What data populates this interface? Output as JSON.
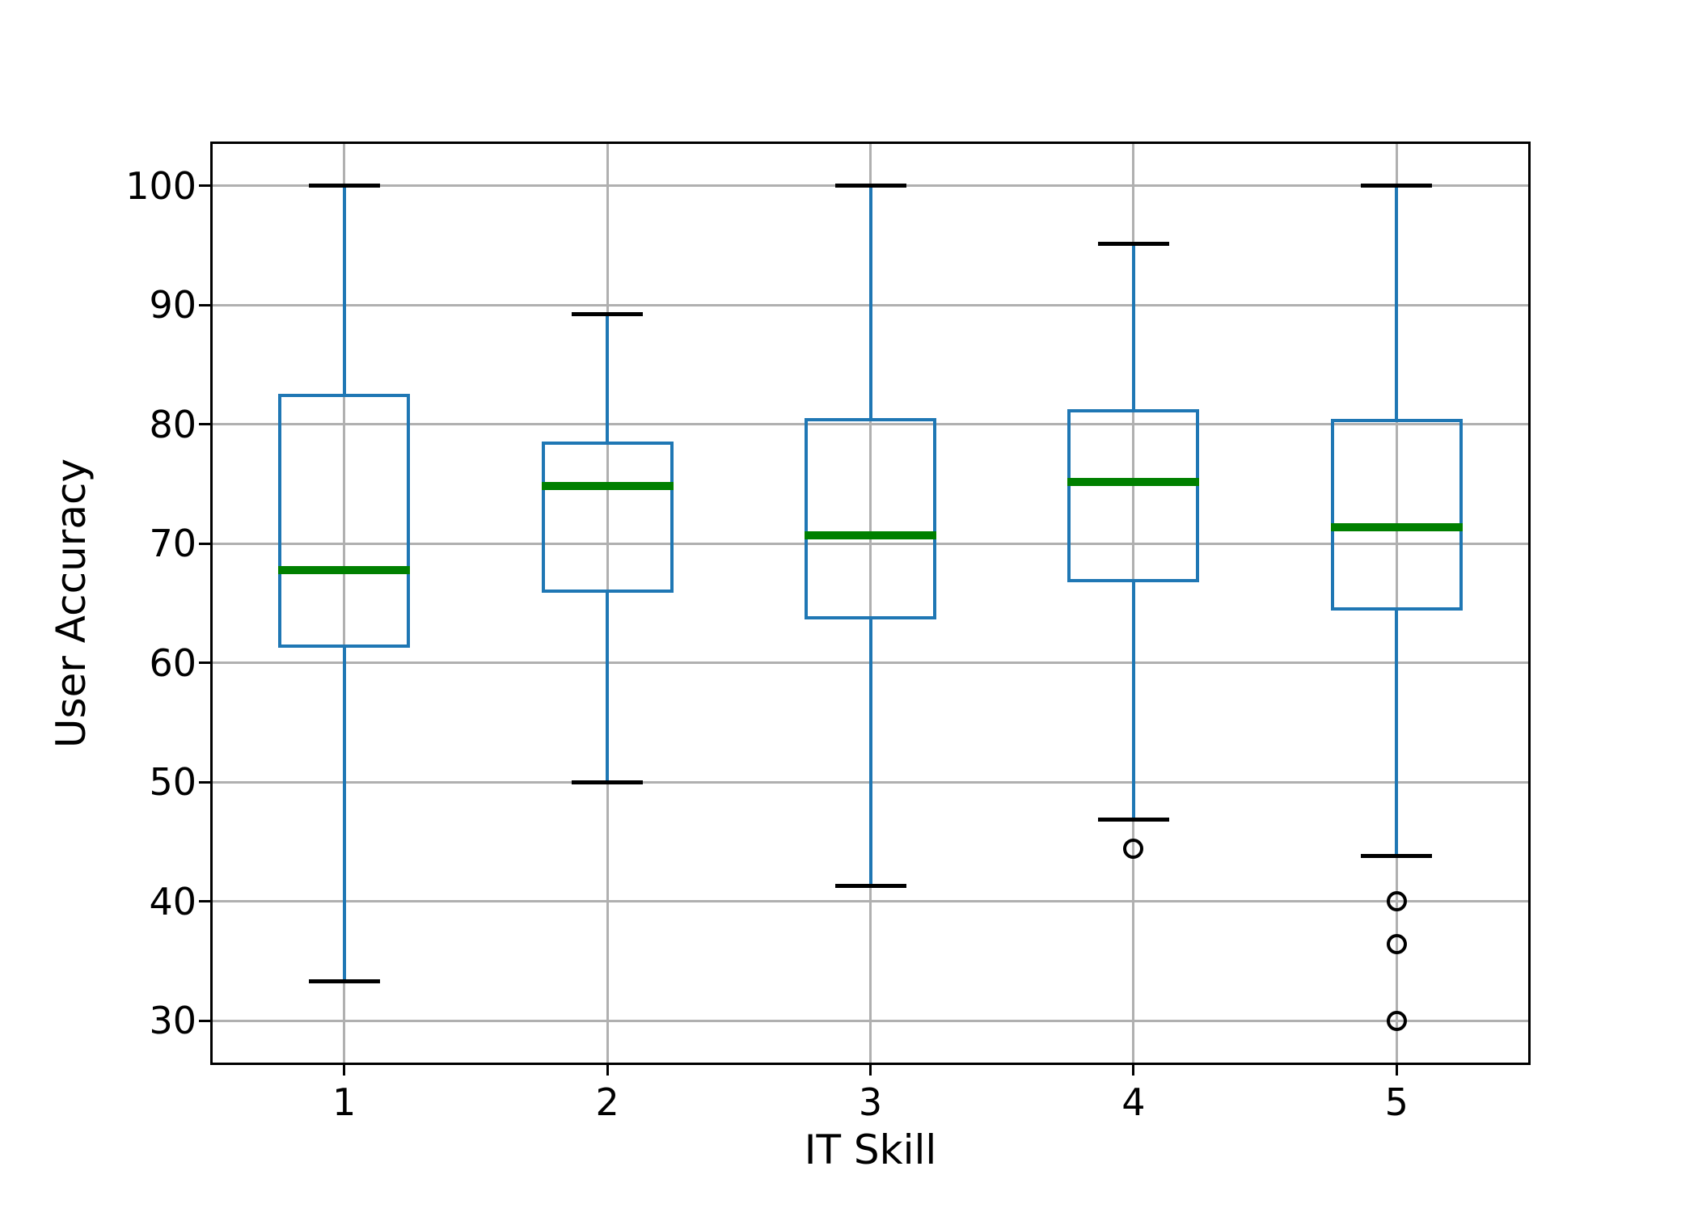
{
  "chart_data": {
    "type": "boxplot",
    "title": "",
    "xlabel": "IT Skill",
    "ylabel": "User Accuracy",
    "categories": [
      "1",
      "2",
      "3",
      "4",
      "5"
    ],
    "yticks": [
      30,
      40,
      50,
      60,
      70,
      80,
      90,
      100
    ],
    "ylim": [
      26.5,
      103.5
    ],
    "xlim": [
      0.5,
      5.5
    ],
    "grid": true,
    "legend": "none",
    "colors": {
      "box": "#1f77b4",
      "whisker": "#1f77b4",
      "median": "#008000",
      "cap": "#000000",
      "outlier_edge": "#000000",
      "grid": "#b0b0b0",
      "spine": "#000000",
      "background": "#ffffff"
    },
    "series": [
      {
        "position": 1,
        "label": "1",
        "whisker_low": 33.3,
        "q1": 61.4,
        "median": 67.8,
        "q3": 82.4,
        "whisker_high": 100.0,
        "outliers": []
      },
      {
        "position": 2,
        "label": "2",
        "whisker_low": 50.0,
        "q1": 66.0,
        "median": 74.8,
        "q3": 78.4,
        "whisker_high": 89.2,
        "outliers": []
      },
      {
        "position": 3,
        "label": "3",
        "whisker_low": 41.3,
        "q1": 63.8,
        "median": 70.7,
        "q3": 80.4,
        "whisker_high": 100.0,
        "outliers": []
      },
      {
        "position": 4,
        "label": "4",
        "whisker_low": 46.9,
        "q1": 66.9,
        "median": 75.2,
        "q3": 81.1,
        "whisker_high": 95.1,
        "outliers": [
          44.4
        ]
      },
      {
        "position": 5,
        "label": "5",
        "whisker_low": 43.8,
        "q1": 64.5,
        "median": 71.4,
        "q3": 80.3,
        "whisker_high": 100.0,
        "outliers": [
          40.0,
          36.4,
          30.0
        ]
      }
    ]
  }
}
